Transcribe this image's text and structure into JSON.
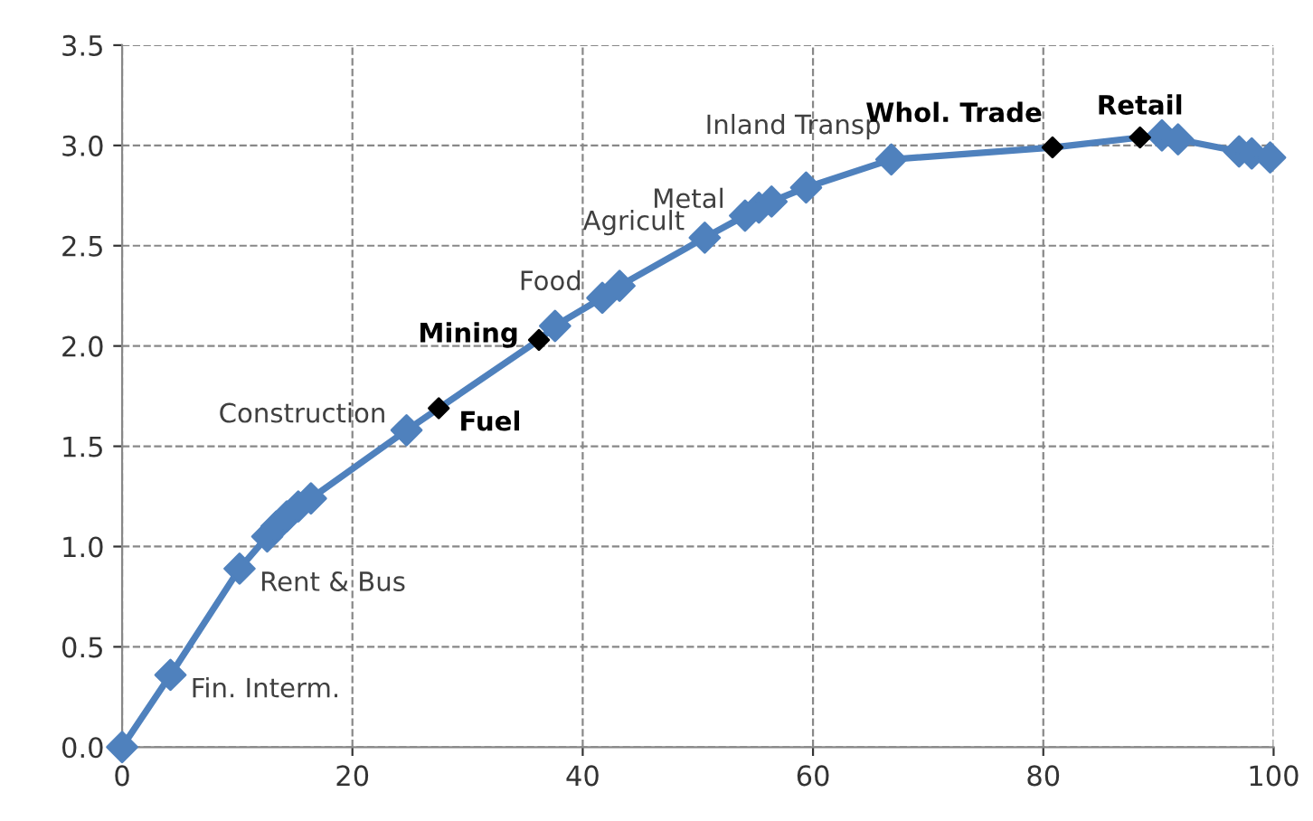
{
  "chart_data": {
    "type": "line",
    "xlim": [
      0,
      100
    ],
    "ylim": [
      0,
      3.5
    ],
    "xticks": [
      0,
      20,
      40,
      60,
      80,
      100
    ],
    "yticks": [
      {
        "value": 0,
        "label": "0.0"
      },
      {
        "value": 0.5,
        "label": "0.5"
      },
      {
        "value": 1,
        "label": "1.0"
      },
      {
        "value": 1.5,
        "label": "1.5"
      },
      {
        "value": 2,
        "label": "2.0"
      },
      {
        "value": 2.5,
        "label": "2.5"
      },
      {
        "value": 3,
        "label": "3.0"
      },
      {
        "value": 3.5,
        "label": "3.5"
      }
    ],
    "grid": true,
    "series": [
      {
        "color": "#4f81bd",
        "marker": "none",
        "x": [
          0,
          4.2,
          10.2,
          12.6,
          13.4,
          14.3,
          15.3,
          16.4,
          24.7,
          27.5,
          36.2,
          37.6,
          41.7,
          43.2,
          50.6,
          54.1,
          55.3,
          56.4,
          59.4,
          66.8,
          80.8,
          88.4,
          90.3,
          91.7,
          97.0,
          98.1,
          99.7
        ],
        "values": [
          0,
          0.36,
          0.89,
          1.05,
          1.1,
          1.15,
          1.2,
          1.24,
          1.58,
          1.69,
          2.03,
          2.1,
          2.24,
          2.3,
          2.54,
          2.65,
          2.69,
          2.72,
          2.79,
          2.93,
          2.99,
          3.04,
          3.05,
          3.03,
          2.97,
          2.96,
          2.94
        ]
      },
      {
        "type": "scatter",
        "color": "#4f81bd",
        "marker": "diamond",
        "x": [
          0,
          4.2,
          10.2,
          12.6,
          13.4,
          14.3,
          15.3,
          16.4,
          24.7,
          37.6,
          41.7,
          43.2,
          50.6,
          54.1,
          55.3,
          56.4,
          59.4,
          66.8,
          90.3,
          91.7,
          97.0,
          98.1,
          99.7
        ],
        "values": [
          0,
          0.36,
          0.89,
          1.05,
          1.1,
          1.15,
          1.2,
          1.24,
          1.58,
          2.1,
          2.24,
          2.3,
          2.54,
          2.65,
          2.69,
          2.72,
          2.79,
          2.93,
          3.05,
          3.03,
          2.97,
          2.96,
          2.94
        ],
        "value_labels": [
          null,
          "Fin. Interm.",
          "Rent & Bus",
          null,
          null,
          null,
          null,
          null,
          "Construction",
          null,
          "Food",
          null,
          "Agricult",
          "Metal",
          null,
          null,
          null,
          "Inland Transp",
          null,
          null,
          null,
          null,
          null
        ]
      },
      {
        "type": "scatter",
        "color": "#000000",
        "marker": "diamond",
        "x": [
          27.5,
          36.2,
          80.8,
          88.4
        ],
        "values": [
          1.69,
          2.03,
          2.99,
          3.04
        ],
        "value_labels": [
          "Fuel",
          "Mining",
          "Whol. Trade",
          "Retail"
        ]
      }
    ]
  }
}
